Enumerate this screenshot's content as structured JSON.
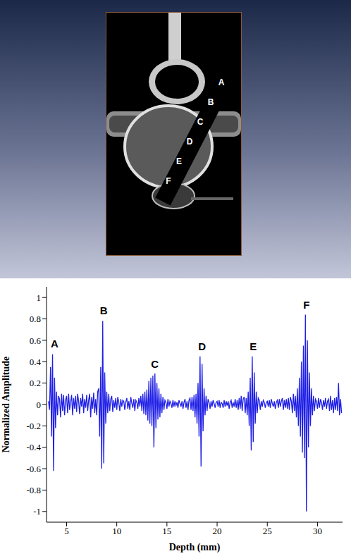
{
  "figure_image": {
    "labels": [
      "A",
      "B",
      "C",
      "D",
      "E",
      "F"
    ]
  },
  "chart_data": {
    "type": "line",
    "x_label": "Depth (mm)",
    "y_label": "Normalized Amplitude",
    "xlim": [
      3,
      32.5
    ],
    "xticks": [
      5,
      10,
      15,
      20,
      25,
      30
    ],
    "ylim": [
      -1.1,
      1.1
    ],
    "yticks": [
      -1,
      -0.8,
      -0.6,
      -0.4,
      -0.2,
      0,
      0.2,
      0.4,
      0.6,
      0.8,
      1
    ],
    "grid": false,
    "color": "#1f1fe6",
    "line_style": "solid",
    "x": [
      3.2,
      3.3,
      3.4,
      3.5,
      3.6,
      3.7,
      3.8,
      3.9,
      4.0,
      4.1,
      4.2,
      4.3,
      4.4,
      4.5,
      4.6,
      4.7,
      4.8,
      4.9,
      5.0,
      5.1,
      5.2,
      5.3,
      5.4,
      5.5,
      5.6,
      5.7,
      5.8,
      5.9,
      6.0,
      6.1,
      6.2,
      6.3,
      6.4,
      6.5,
      6.6,
      6.7,
      6.8,
      6.9,
      7.0,
      7.1,
      7.2,
      7.3,
      7.4,
      7.5,
      7.6,
      7.7,
      7.8,
      7.9,
      8.0,
      8.1,
      8.2,
      8.3,
      8.4,
      8.5,
      8.6,
      8.7,
      8.8,
      8.9,
      9.0,
      9.1,
      9.2,
      9.3,
      9.4,
      9.5,
      9.6,
      9.7,
      9.8,
      9.9,
      10.0,
      10.1,
      10.2,
      10.3,
      10.4,
      10.5,
      10.6,
      10.7,
      10.8,
      10.9,
      11.0,
      11.1,
      11.2,
      11.3,
      11.4,
      11.5,
      11.6,
      11.7,
      11.8,
      11.9,
      12.0,
      12.1,
      12.2,
      12.3,
      12.4,
      12.5,
      12.6,
      12.7,
      12.8,
      12.9,
      13.0,
      13.1,
      13.2,
      13.3,
      13.4,
      13.5,
      13.6,
      13.7,
      13.8,
      13.9,
      14.0,
      14.1,
      14.2,
      14.3,
      14.4,
      14.5,
      14.6,
      14.7,
      14.8,
      14.9,
      15.0,
      15.1,
      15.2,
      15.3,
      15.4,
      15.5,
      15.6,
      15.7,
      15.8,
      15.9,
      16.0,
      16.1,
      16.2,
      16.3,
      16.4,
      16.5,
      16.6,
      16.7,
      16.8,
      16.9,
      17.0,
      17.1,
      17.2,
      17.3,
      17.4,
      17.5,
      17.6,
      17.7,
      17.8,
      17.9,
      18.0,
      18.1,
      18.2,
      18.3,
      18.4,
      18.5,
      18.6,
      18.7,
      18.8,
      18.9,
      19.0,
      19.1,
      19.2,
      19.3,
      19.4,
      19.5,
      19.6,
      19.7,
      19.8,
      19.9,
      20.0,
      20.1,
      20.2,
      20.3,
      20.4,
      20.5,
      20.6,
      20.7,
      20.8,
      20.9,
      21.0,
      21.1,
      21.2,
      21.3,
      21.4,
      21.5,
      21.6,
      21.7,
      21.8,
      21.9,
      22.0,
      22.1,
      22.2,
      22.3,
      22.4,
      22.5,
      22.6,
      22.7,
      22.8,
      22.9,
      23.0,
      23.1,
      23.2,
      23.3,
      23.4,
      23.5,
      23.6,
      23.7,
      23.8,
      23.9,
      24.0,
      24.1,
      24.2,
      24.3,
      24.4,
      24.5,
      24.6,
      24.7,
      24.8,
      24.9,
      25.0,
      25.1,
      25.2,
      25.3,
      25.4,
      25.5,
      25.6,
      25.7,
      25.8,
      25.9,
      26.0,
      26.1,
      26.2,
      26.3,
      26.4,
      26.5,
      26.6,
      26.7,
      26.8,
      26.9,
      27.0,
      27.1,
      27.2,
      27.3,
      27.4,
      27.5,
      27.6,
      27.7,
      27.8,
      27.9,
      28.0,
      28.1,
      28.2,
      28.3,
      28.4,
      28.5,
      28.6,
      28.7,
      28.8,
      28.9,
      29.0,
      29.1,
      29.2,
      29.3,
      29.4,
      29.5,
      29.6,
      29.7,
      29.8,
      29.9,
      30.0,
      30.1,
      30.2,
      30.3,
      30.4,
      30.5,
      30.6,
      30.7,
      30.8,
      30.9,
      31.0,
      31.1,
      31.2,
      31.3,
      31.4,
      31.5,
      31.6,
      31.7,
      31.8,
      31.9,
      32.0,
      32.1,
      32.2,
      32.3,
      32.4
    ],
    "values": [
      0.03,
      -0.05,
      0.35,
      -0.3,
      0.47,
      -0.62,
      0.25,
      -0.22,
      0.12,
      -0.1,
      0.08,
      0.05,
      -0.12,
      0.1,
      -0.06,
      0.09,
      -0.1,
      0.04,
      0.08,
      -0.08,
      0.1,
      -0.05,
      0.02,
      0.09,
      -0.1,
      0.06,
      -0.04,
      0.08,
      -0.07,
      0.1,
      0.03,
      -0.09,
      0.06,
      -0.02,
      0.1,
      -0.08,
      0.05,
      -0.03,
      0.09,
      -0.06,
      0.04,
      0.1,
      -0.12,
      0.07,
      -0.04,
      0.11,
      -0.08,
      0.05,
      -0.1,
      0.12,
      0.15,
      -0.3,
      0.35,
      -0.6,
      0.78,
      -0.55,
      0.3,
      -0.18,
      0.12,
      -0.08,
      0.1,
      -0.06,
      0.05,
      0.08,
      -0.07,
      0.04,
      -0.03,
      0.06,
      -0.05,
      0.07,
      0.02,
      -0.06,
      0.05,
      -0.02,
      0.04,
      0.03,
      -0.05,
      0.02,
      0.06,
      -0.04,
      0.03,
      -0.05,
      0.07,
      0.01,
      -0.03,
      0.05,
      -0.06,
      0.04,
      0.02,
      -0.04,
      0.06,
      -0.02,
      0.08,
      -0.06,
      0.1,
      -0.09,
      0.12,
      -0.1,
      0.14,
      -0.15,
      0.22,
      -0.18,
      0.25,
      -0.2,
      0.27,
      -0.4,
      0.29,
      -0.22,
      0.2,
      -0.14,
      0.15,
      -0.12,
      0.1,
      -0.08,
      0.07,
      -0.05,
      0.04,
      0.02,
      -0.04,
      0.05,
      -0.02,
      0.03,
      0.01,
      -0.03,
      0.04,
      -0.02,
      0.03,
      -0.01,
      0.02,
      -0.03,
      0.04,
      0.01,
      -0.02,
      0.03,
      -0.04,
      0.02,
      0.05,
      -0.03,
      0.03,
      -0.05,
      0.04,
      0.06,
      -0.05,
      0.07,
      -0.06,
      0.09,
      -0.12,
      0.1,
      -0.18,
      0.2,
      -0.3,
      0.45,
      -0.58,
      0.38,
      -0.25,
      0.15,
      -0.1,
      0.08,
      -0.06,
      0.05,
      0.02,
      -0.04,
      0.03,
      -0.02,
      0.04,
      0.01,
      -0.03,
      0.02,
      0.03,
      -0.02,
      0.04,
      -0.03,
      0.02,
      0.01,
      -0.03,
      0.04,
      -0.02,
      0.03,
      -0.01,
      0.03,
      -0.04,
      0.02,
      0.04,
      -0.03,
      0.02,
      -0.02,
      0.05,
      -0.03,
      0.04,
      -0.05,
      0.06,
      -0.04,
      0.08,
      -0.06,
      0.05,
      0.07,
      -0.08,
      0.06,
      -0.1,
      0.12,
      -0.2,
      0.25,
      -0.43,
      0.45,
      -0.35,
      0.3,
      -0.18,
      0.12,
      -0.08,
      0.06,
      0.04,
      -0.05,
      0.03,
      -0.02,
      0.04,
      0.02,
      -0.03,
      0.02,
      0.03,
      -0.02,
      0.04,
      -0.03,
      0.05,
      0.01,
      -0.02,
      0.03,
      -0.04,
      0.02,
      0.04,
      -0.03,
      0.05,
      -0.02,
      0.03,
      0.06,
      -0.05,
      0.04,
      -0.03,
      0.05,
      -0.04,
      0.06,
      -0.05,
      0.07,
      0.03,
      -0.08,
      0.1,
      -0.06,
      0.08,
      -0.12,
      0.15,
      -0.2,
      0.25,
      -0.3,
      0.4,
      -0.45,
      0.55,
      -0.5,
      0.84,
      -1.0,
      0.6,
      -0.4,
      0.3,
      -0.2,
      0.15,
      -0.1,
      0.08,
      -0.06,
      0.05,
      0.03,
      -0.04,
      0.06,
      -0.03,
      0.05,
      0.02,
      -0.05,
      0.04,
      -0.02,
      0.06,
      -0.04,
      0.03,
      0.05,
      -0.06,
      0.08,
      -0.05,
      0.04,
      -0.08,
      0.06,
      -0.05,
      0.07,
      -0.06,
      0.2,
      -0.1,
      0.05,
      -0.08
    ],
    "annotations": [
      {
        "text": "A",
        "x": 3.8,
        "y": 0.57
      },
      {
        "text": "B",
        "x": 8.7,
        "y": 0.88
      },
      {
        "text": "C",
        "x": 13.8,
        "y": 0.38
      },
      {
        "text": "D",
        "x": 18.5,
        "y": 0.54
      },
      {
        "text": "E",
        "x": 23.6,
        "y": 0.54
      },
      {
        "text": "F",
        "x": 28.9,
        "y": 0.93
      }
    ]
  }
}
